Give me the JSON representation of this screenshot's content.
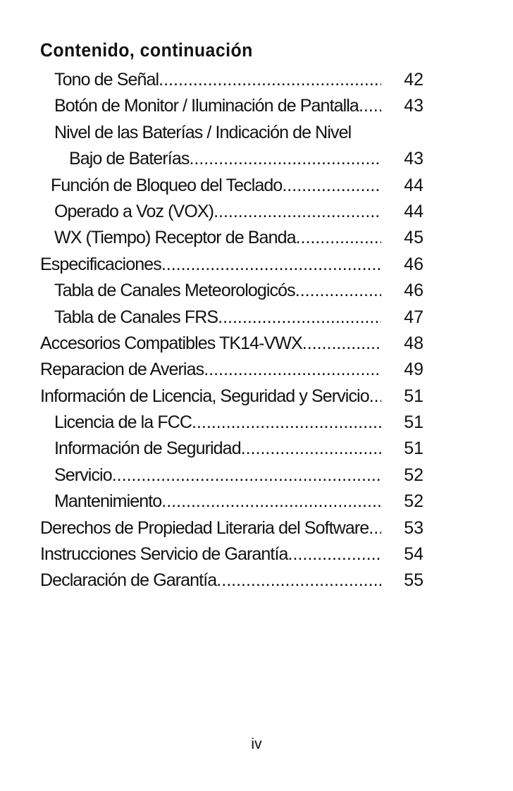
{
  "heading": "Contenido, continuación",
  "entries": [
    {
      "title": "Tono de Señal",
      "page": "42"
    },
    {
      "title": "Botón de Monitor / Iluminación de Pantalla",
      "page": "43"
    },
    {
      "title": "Nivel de las Baterías / Indicación de Nivel",
      "page": ""
    },
    {
      "title": "Bajo de Baterías",
      "page": "43"
    },
    {
      "title": "Función de Bloqueo del Teclado",
      "page": "44"
    },
    {
      "title": "Operado a Voz (VOX)",
      "page": "44"
    },
    {
      "title": "WX (Tiempo) Receptor de Banda",
      "page": "45"
    },
    {
      "title": "Especificaciones",
      "page": "46"
    },
    {
      "title": "Tabla de Canales Meteorologicós",
      "page": "46"
    },
    {
      "title": "Tabla de Canales FRS",
      "page": "47"
    },
    {
      "title": "Accesorios Compatibles TK14-VWX",
      "page": "48"
    },
    {
      "title": "Reparacion de Averias",
      "page": "49"
    },
    {
      "title": "Información de Licencia, Seguridad y Servicio",
      "page": "51"
    },
    {
      "title": "Licencia de la FCC",
      "page": "51"
    },
    {
      "title": "Información de Seguridad",
      "page": "51"
    },
    {
      "title": "Servicio",
      "page": "52"
    },
    {
      "title": "Mantenimiento",
      "page": "52"
    },
    {
      "title": "Derechos de Propiedad Literaria del Software",
      "page": "53"
    },
    {
      "title": "Instrucciones Servicio de Garantía",
      "page": "54"
    },
    {
      "title": "Declaración de Garantía",
      "page": "55"
    }
  ],
  "footer": {
    "page_number": "iv"
  }
}
